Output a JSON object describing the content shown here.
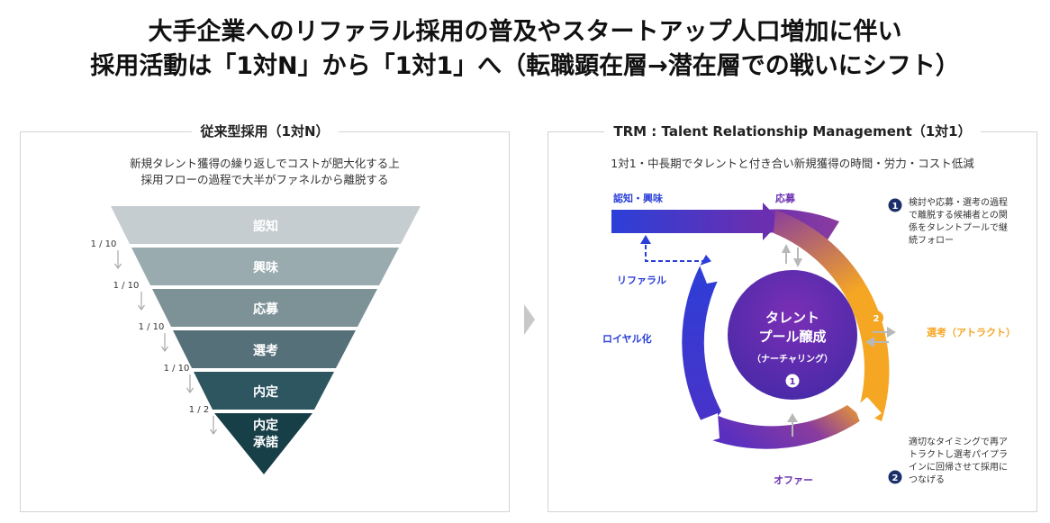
{
  "header": {
    "line1": "大手企業へのリファラル採用の普及やスタートアップ人口増加に伴い",
    "line2": "採用活動は「1対N」から「1対1」へ（転職顕在層→潜在層での戦いにシフト）"
  },
  "left_panel": {
    "title": "従来型採用（1対N）",
    "desc_line1": "新規タレント獲得の繰り返しでコストが肥大化する上",
    "desc_line2": "採用フローの過程で大半がファネルから離脱する",
    "funnel": [
      {
        "label": "認知",
        "color": "#c5cdd0"
      },
      {
        "label": "興味",
        "color": "#9aabb0"
      },
      {
        "label": "応募",
        "color": "#7d9297"
      },
      {
        "label": "選考",
        "color": "#56707a"
      },
      {
        "label": "内定",
        "color": "#2d5661"
      },
      {
        "label_line1": "内定",
        "label_line2": "承諾",
        "color": "#173f47"
      }
    ],
    "ratios": [
      "1 / 10",
      "1 / 10",
      "1 / 10",
      "1 / 10",
      "1 / 2"
    ]
  },
  "right_panel": {
    "title": "TRM : Talent Relationship Management（1対1）",
    "desc": "1対1・中長期でタレントと付き合い新規獲得の時間・労力・コスト低減",
    "stages": {
      "awareness": "認知・興味",
      "apply": "応募",
      "select": "選考（アトラクト）",
      "offer": "オファー",
      "loyalty": "ロイヤル化",
      "referral": "リファラル"
    },
    "center": {
      "line1": "タレント",
      "line2": "プール醸成",
      "line3": "（ナーチャリング）",
      "badge": "1"
    },
    "badge2": "2",
    "note1": {
      "badge": "1",
      "lines": [
        "検討や応募・選考の過程",
        "で離脱する候補者との関",
        "係をタレントプールで継",
        "続フォロー"
      ]
    },
    "note2": {
      "badge": "2",
      "lines": [
        "適切なタイミングで再ア",
        "トラクトし選考パイプラ",
        "インに回帰させて採用に",
        "つなげる"
      ]
    },
    "colors": {
      "blue": "#2b3fd8",
      "purple": "#6a2fb0",
      "orange": "#f5a623",
      "navy": "#1d2f6b"
    }
  }
}
